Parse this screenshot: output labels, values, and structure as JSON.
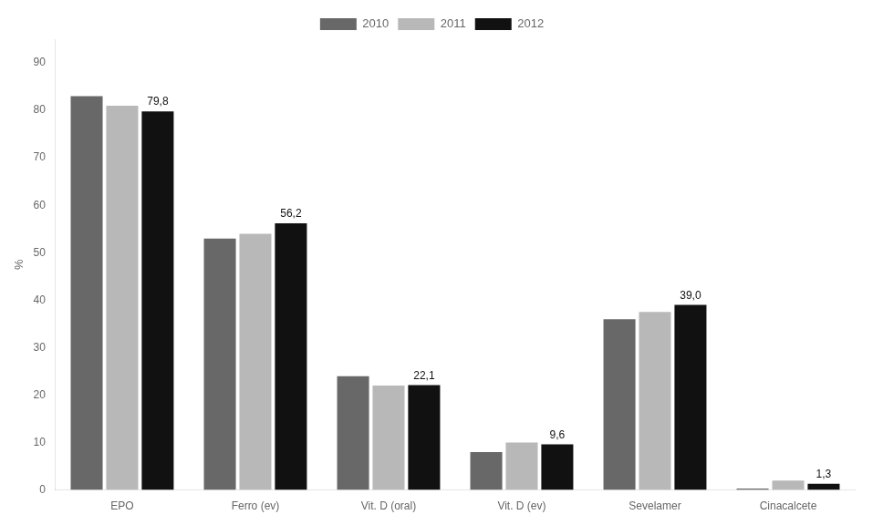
{
  "chart_data": {
    "type": "bar",
    "categories": [
      "EPO",
      "Ferro (ev)",
      "Vit. D (oral)",
      "Vit. D (ev)",
      "Sevelamer",
      "Cinacalcete"
    ],
    "series": [
      {
        "name": "2010",
        "color": "#686868",
        "values": [
          83.0,
          53.0,
          24.0,
          8.0,
          36.0,
          0.3
        ]
      },
      {
        "name": "2011",
        "color": "#b8b8b8",
        "values": [
          81.0,
          54.0,
          22.0,
          10.0,
          37.5,
          2.0
        ]
      },
      {
        "name": "2012",
        "color": "#111111",
        "values": [
          79.8,
          56.2,
          22.1,
          9.6,
          39.0,
          1.3
        ],
        "value_labels": [
          "79,8",
          "56,2",
          "22,1",
          "9,6",
          "39,0",
          "1,3"
        ],
        "data_labels": true
      }
    ],
    "ylabel": "%",
    "ylim": [
      0,
      95
    ],
    "yticks": [
      0,
      10,
      20,
      30,
      40,
      50,
      60,
      70,
      80,
      90
    ],
    "grid": false,
    "legend": "top"
  }
}
